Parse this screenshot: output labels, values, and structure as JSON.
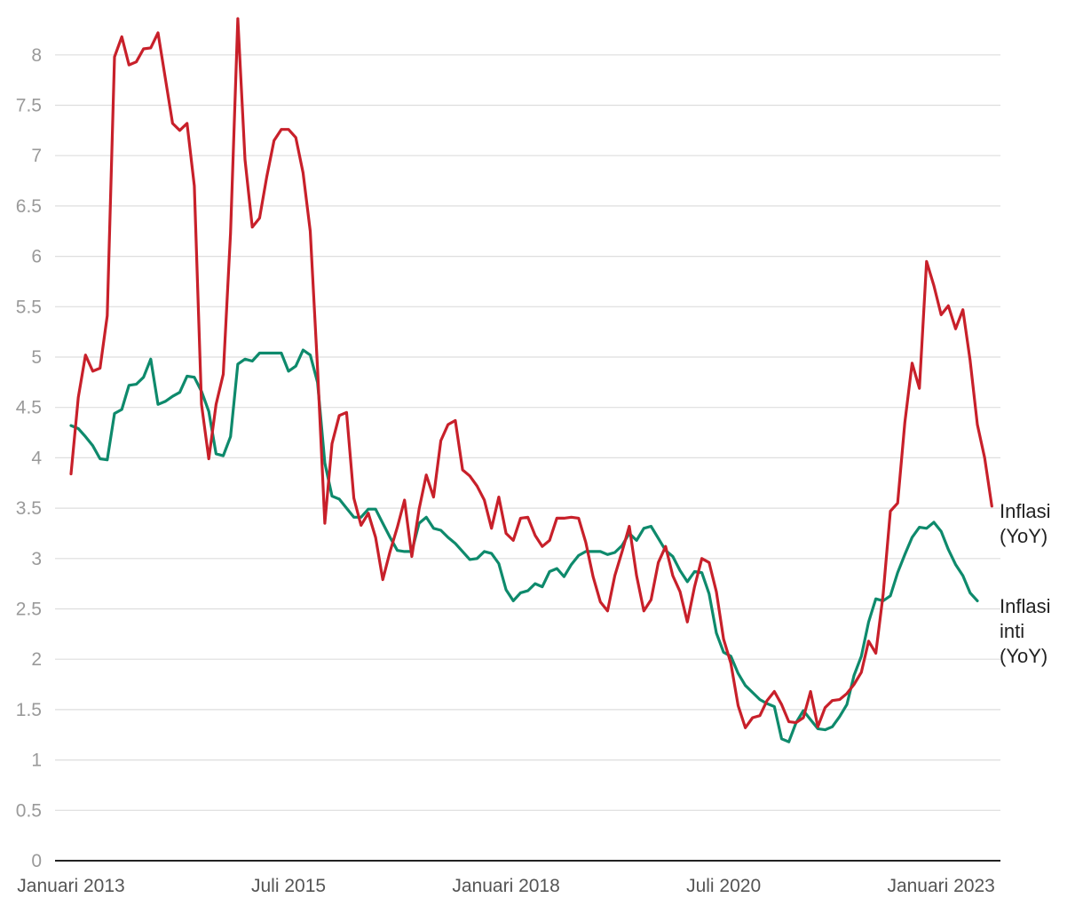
{
  "chart_data": {
    "type": "line",
    "title": "",
    "xlabel": "",
    "ylabel": "",
    "ylim": [
      0,
      8.5
    ],
    "y_ticks": [
      "0",
      "0.5",
      "1",
      "1.5",
      "2",
      "2.5",
      "3",
      "3.5",
      "4",
      "4.5",
      "5",
      "5.5",
      "6",
      "6.5",
      "7",
      "7.5",
      "8"
    ],
    "x_ticks": [
      {
        "label": "Januari 2013",
        "index": 0
      },
      {
        "label": "Juli 2015",
        "index": 30
      },
      {
        "label": "Januari 2018",
        "index": 60
      },
      {
        "label": "Juli 2020",
        "index": 90
      },
      {
        "label": "Januari 2023",
        "index": 120
      }
    ],
    "x_start": "Januari 2013",
    "x_frequency": "monthly",
    "grid": true,
    "legend": "inline labels at right end of lines",
    "series": [
      {
        "name": "Inflasi (YoY)",
        "label_lines": [
          "Inflasi",
          "(YoY)"
        ],
        "color": "#c8202a",
        "values": [
          3.84,
          4.6,
          5.02,
          4.86,
          4.89,
          5.41,
          7.98,
          8.18,
          7.9,
          7.93,
          8.06,
          8.07,
          8.22,
          7.77,
          7.32,
          7.25,
          7.32,
          6.7,
          4.53,
          3.99,
          4.53,
          4.83,
          6.23,
          8.36,
          6.96,
          6.29,
          6.38,
          6.79,
          7.15,
          7.26,
          7.26,
          7.18,
          6.83,
          6.25,
          4.89,
          3.35,
          4.14,
          4.42,
          4.45,
          3.6,
          3.33,
          3.45,
          3.21,
          2.79,
          3.07,
          3.31,
          3.58,
          3.02,
          3.49,
          3.83,
          3.61,
          4.17,
          4.33,
          4.37,
          3.88,
          3.82,
          3.72,
          3.58,
          3.3,
          3.61,
          3.25,
          3.18,
          3.4,
          3.41,
          3.23,
          3.12,
          3.18,
          3.4,
          3.4,
          3.41,
          3.4,
          3.16,
          2.82,
          2.57,
          2.48,
          2.83,
          3.07,
          3.32,
          2.83,
          2.48,
          2.59,
          2.96,
          3.12,
          2.83,
          2.67,
          2.37,
          2.72,
          3.0,
          2.96,
          2.67,
          2.2,
          1.96,
          1.54,
          1.32,
          1.42,
          1.44,
          1.59,
          1.68,
          1.55,
          1.38,
          1.37,
          1.42,
          1.68,
          1.33,
          1.52,
          1.59,
          1.6,
          1.66,
          1.75,
          1.87,
          2.18,
          2.06,
          2.64,
          3.47,
          3.55,
          4.35,
          4.94,
          4.69,
          5.95,
          5.71,
          5.42,
          5.51,
          5.28,
          5.47,
          4.97,
          4.33,
          4.0,
          3.52
        ]
      },
      {
        "name": "Inflasi inti (YoY)",
        "label_lines": [
          "Inflasi",
          "inti",
          "(YoY)"
        ],
        "color": "#0e8a6c",
        "values": [
          4.32,
          4.29,
          4.21,
          4.12,
          3.99,
          3.98,
          4.44,
          4.48,
          4.72,
          4.73,
          4.8,
          4.98,
          4.53,
          4.56,
          4.61,
          4.65,
          4.81,
          4.8,
          4.66,
          4.46,
          4.04,
          4.02,
          4.21,
          4.93,
          4.98,
          4.96,
          5.04,
          5.04,
          5.04,
          5.04,
          4.86,
          4.91,
          5.07,
          5.02,
          4.75,
          3.95,
          3.62,
          3.59,
          3.5,
          3.41,
          3.41,
          3.49,
          3.49,
          3.35,
          3.21,
          3.08,
          3.07,
          3.07,
          3.35,
          3.41,
          3.3,
          3.28,
          3.21,
          3.15,
          3.07,
          2.99,
          3.0,
          3.07,
          3.05,
          2.95,
          2.69,
          2.58,
          2.66,
          2.68,
          2.75,
          2.72,
          2.87,
          2.9,
          2.82,
          2.94,
          3.03,
          3.07,
          3.07,
          3.07,
          3.04,
          3.06,
          3.13,
          3.25,
          3.18,
          3.3,
          3.32,
          3.2,
          3.08,
          3.02,
          2.88,
          2.77,
          2.87,
          2.86,
          2.65,
          2.26,
          2.07,
          2.03,
          1.86,
          1.74,
          1.67,
          1.6,
          1.56,
          1.53,
          1.21,
          1.18,
          1.37,
          1.49,
          1.4,
          1.31,
          1.3,
          1.33,
          1.43,
          1.55,
          1.84,
          2.03,
          2.37,
          2.6,
          2.58,
          2.63,
          2.86,
          3.04,
          3.21,
          3.31,
          3.3,
          3.36,
          3.27,
          3.09,
          2.94,
          2.83,
          2.66,
          2.58
        ]
      }
    ]
  }
}
